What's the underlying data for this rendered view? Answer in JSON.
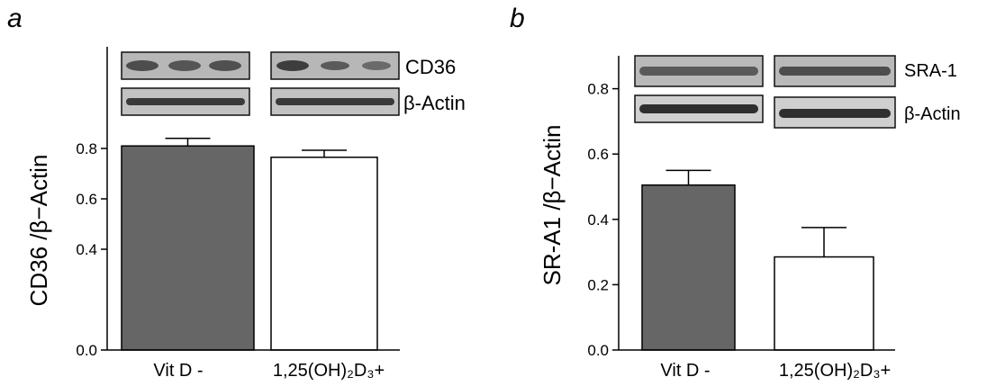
{
  "colors": {
    "dark_bar": "#666666",
    "light_bar": "#ffffff",
    "axis": "#000000"
  },
  "chart_data": [
    {
      "type": "bar",
      "panel_letter": "a",
      "categories": [
        "Vit D  -",
        "1,25(OH)₂D₃+"
      ],
      "values": [
        0.81,
        0.765
      ],
      "errors": [
        0.03,
        0.028
      ],
      "bar_colors": [
        "#666666",
        "#ffffff"
      ],
      "ylabel": "CD36 /β−Actin",
      "ylim": [
        0.0,
        1.0
      ],
      "y_ticks": [
        {
          "value": 0.0,
          "label": "0.0"
        },
        {
          "value": 0.4,
          "label": "0.4"
        },
        {
          "value": 0.6,
          "label": "0.6"
        },
        {
          "value": 0.8,
          "label": "0.8"
        }
      ],
      "blot_labels": [
        "CD36",
        "β-Actin"
      ]
    },
    {
      "type": "bar",
      "panel_letter": "b",
      "categories": [
        "Vit D  -",
        "1,25(OH)₂D₃+"
      ],
      "values": [
        0.505,
        0.285
      ],
      "errors": [
        0.045,
        0.09
      ],
      "bar_colors": [
        "#666666",
        "#ffffff"
      ],
      "ylabel": "SR-A1 /β−Actin",
      "ylim": [
        0.0,
        0.9
      ],
      "y_ticks": [
        {
          "value": 0.0,
          "label": "0.0"
        },
        {
          "value": 0.2,
          "label": "0.2"
        },
        {
          "value": 0.4,
          "label": "0.4"
        },
        {
          "value": 0.6,
          "label": "0.6"
        },
        {
          "value": 0.8,
          "label": "0.8"
        }
      ],
      "blot_labels": [
        "SRA-1",
        "β-Actin"
      ]
    }
  ]
}
